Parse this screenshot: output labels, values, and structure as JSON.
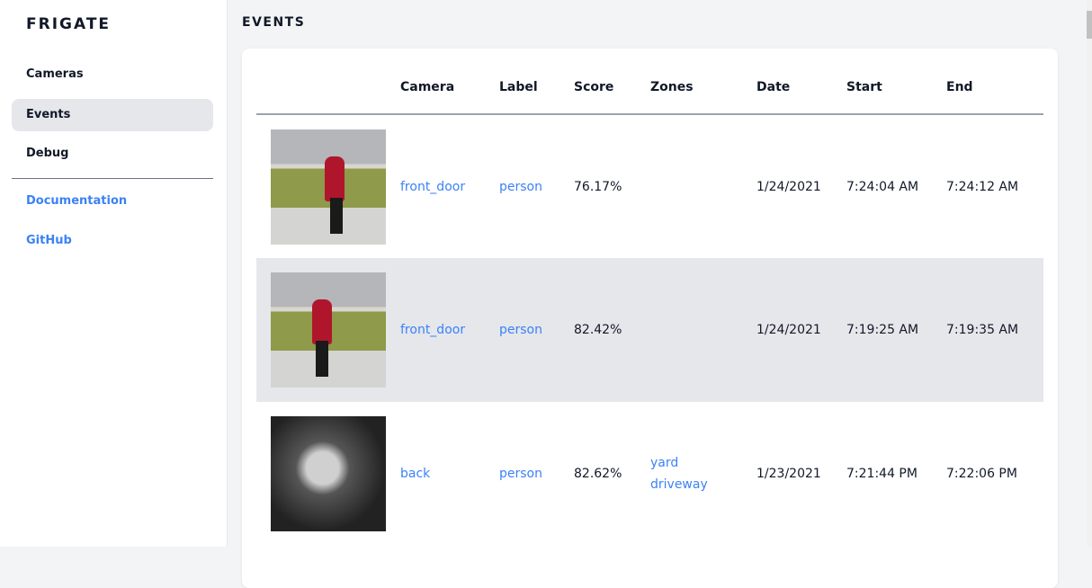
{
  "sidebar": {
    "brand": "FRIGATE",
    "items": [
      {
        "label": "Cameras"
      },
      {
        "label": "Events",
        "active": true
      },
      {
        "label": "Debug"
      }
    ],
    "links": [
      {
        "label": "Documentation"
      },
      {
        "label": "GitHub"
      }
    ]
  },
  "main": {
    "title": "EVENTS",
    "columns": [
      "",
      "Camera",
      "Label",
      "Score",
      "Zones",
      "Date",
      "Start",
      "End"
    ],
    "rows": [
      {
        "thumbnail": "person-walking-dog",
        "camera": "front_door",
        "label": "person",
        "score": "76.17%",
        "zones": [
          "",
          ""
        ],
        "date": "1/24/2021",
        "start": "7:24:04 AM",
        "end": "7:24:12 AM"
      },
      {
        "thumbnail": "person-walking-dog",
        "camera": "front_door",
        "label": "person",
        "score": "82.42%",
        "zones": [
          "",
          ""
        ],
        "date": "1/24/2021",
        "start": "7:19:25 AM",
        "end": "7:19:35 AM"
      },
      {
        "thumbnail": "person-night",
        "camera": "back",
        "label": "person",
        "score": "82.62%",
        "zones": [
          "yard",
          "driveway"
        ],
        "date": "1/23/2021",
        "start": "7:21:44 PM",
        "end": "7:22:06 PM"
      }
    ]
  },
  "colors": {
    "accent": "#3b82f6",
    "active_bg": "#e5e7eb",
    "background": "#f3f4f6"
  }
}
